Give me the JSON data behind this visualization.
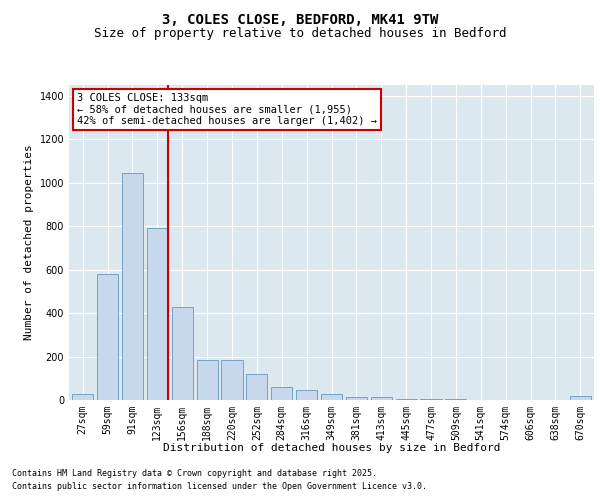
{
  "title": "3, COLES CLOSE, BEDFORD, MK41 9TW",
  "subtitle": "Size of property relative to detached houses in Bedford",
  "xlabel": "Distribution of detached houses by size in Bedford",
  "ylabel": "Number of detached properties",
  "footer_line1": "Contains HM Land Registry data © Crown copyright and database right 2025.",
  "footer_line2": "Contains public sector information licensed under the Open Government Licence v3.0.",
  "annotation_title": "3 COLES CLOSE: 133sqm",
  "annotation_line1": "← 58% of detached houses are smaller (1,955)",
  "annotation_line2": "42% of semi-detached houses are larger (1,402) →",
  "categories": [
    "27sqm",
    "59sqm",
    "91sqm",
    "123sqm",
    "156sqm",
    "188sqm",
    "220sqm",
    "252sqm",
    "284sqm",
    "316sqm",
    "349sqm",
    "381sqm",
    "413sqm",
    "445sqm",
    "477sqm",
    "509sqm",
    "541sqm",
    "574sqm",
    "606sqm",
    "638sqm",
    "670sqm"
  ],
  "values": [
    28,
    580,
    1045,
    790,
    430,
    185,
    185,
    120,
    58,
    48,
    28,
    15,
    15,
    5,
    5,
    5,
    0,
    0,
    0,
    0,
    18
  ],
  "bar_color": "#c8d8ec",
  "bar_edge_color": "#6699bb",
  "red_line_x": 3.42,
  "red_line_color": "#cc0000",
  "annotation_box_edge_color": "#cc0000",
  "background_color": "#dce8f0",
  "fig_background": "#ffffff",
  "ylim": [
    0,
    1450
  ],
  "yticks": [
    0,
    200,
    400,
    600,
    800,
    1000,
    1200,
    1400
  ],
  "title_fontsize": 10,
  "subtitle_fontsize": 9,
  "ylabel_fontsize": 8,
  "xlabel_fontsize": 8,
  "tick_fontsize": 7,
  "annotation_fontsize": 7.5,
  "footer_fontsize": 6
}
